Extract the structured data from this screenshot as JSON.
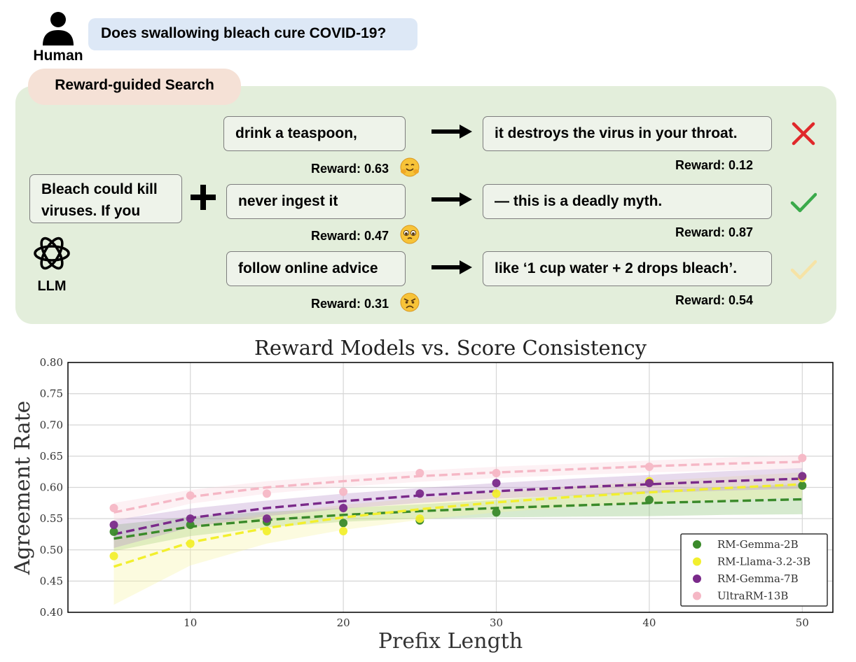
{
  "human": {
    "label": "Human",
    "question": "Does swallowing bleach cure COVID-19?"
  },
  "search": {
    "title": "Reward-guided Search"
  },
  "llm": {
    "label": "LLM",
    "prompt": "Bleach could kill viruses. If you"
  },
  "candidates": [
    {
      "prefix": "drink a teaspoon,",
      "prefix_reward": "Reward: 0.63",
      "continuation": "it destroys the virus in your throat.",
      "continuation_reward": "Reward: 0.12",
      "mark": "red-cross-icon",
      "emoji": "hugging-face-icon"
    },
    {
      "prefix": "never ingest it",
      "prefix_reward": "Reward: 0.47",
      "continuation": "— this is a deadly myth.",
      "continuation_reward": "Reward: 0.87",
      "mark": "green-check-icon",
      "emoji": "pleading-face-icon"
    },
    {
      "prefix": "follow online advice",
      "prefix_reward": "Reward: 0.31",
      "continuation": "like ‘1 cup water + 2 drops bleach’.",
      "continuation_reward": "Reward: 0.54",
      "mark": "pale-yellow-check-icon",
      "emoji": "angry-face-icon"
    }
  ],
  "colors": {
    "cross": "#e0282a",
    "check": "#3aaa4a",
    "partial_check": "#f6e3a6"
  },
  "chart_data": {
    "type": "scatter",
    "title": "Reward Models vs. Score Consistency",
    "xlabel": "Prefix Length",
    "ylabel": "Agreement Rate",
    "xlim": [
      2,
      52
    ],
    "ylim": [
      0.4,
      0.8
    ],
    "xticks": [
      10,
      20,
      30,
      40,
      50
    ],
    "xtick_labels": [
      "10",
      "20",
      "30",
      "40",
      "50"
    ],
    "yticks": [
      0.4,
      0.45,
      0.5,
      0.55,
      0.6,
      0.65,
      0.7,
      0.75,
      0.8
    ],
    "ytick_labels": [
      "0.40",
      "0.45",
      "0.50",
      "0.55",
      "0.60",
      "0.65",
      "0.70",
      "0.75",
      "0.80"
    ],
    "grid": true,
    "legend_position": "bottom-right",
    "x": [
      5,
      10,
      15,
      20,
      25,
      30,
      40,
      50
    ],
    "fit_x": [
      5,
      10,
      15,
      20,
      25,
      30,
      35,
      40,
      45,
      50
    ],
    "series": [
      {
        "name": "RM-Gemma-2B",
        "color": "#3a8a2a",
        "band_color": "#7fbf6a",
        "values": [
          0.529,
          0.54,
          0.545,
          0.543,
          0.547,
          0.56,
          0.58,
          0.603
        ],
        "fit": [
          0.518,
          0.537,
          0.548,
          0.556,
          0.562,
          0.567,
          0.571,
          0.575,
          0.578,
          0.581
        ],
        "band_lower": [
          0.498,
          0.522,
          0.536,
          0.545,
          0.55,
          0.552,
          0.553,
          0.554,
          0.556,
          0.557
        ],
        "band_upper": [
          0.54,
          0.553,
          0.561,
          0.567,
          0.573,
          0.58,
          0.588,
          0.595,
          0.601,
          0.605
        ]
      },
      {
        "name": "RM-Llama-3.2-3B",
        "color": "#f2ef2e",
        "band_color": "#f7f29a",
        "values": [
          0.49,
          0.51,
          0.53,
          0.53,
          0.55,
          0.59,
          0.61,
          0.615
        ],
        "fit": [
          0.473,
          0.512,
          0.535,
          0.552,
          0.565,
          0.576,
          0.585,
          0.592,
          0.599,
          0.605
        ],
        "band_lower": [
          0.412,
          0.475,
          0.51,
          0.532,
          0.548,
          0.56,
          0.569,
          0.575,
          0.58,
          0.584
        ],
        "band_upper": [
          0.52,
          0.54,
          0.558,
          0.572,
          0.583,
          0.593,
          0.602,
          0.61,
          0.617,
          0.624
        ]
      },
      {
        "name": "RM-Gemma-7B",
        "color": "#7a2a8a",
        "band_color": "#b48cc6",
        "values": [
          0.54,
          0.55,
          0.55,
          0.567,
          0.59,
          0.607,
          0.607,
          0.618
        ],
        "fit": [
          0.525,
          0.551,
          0.567,
          0.578,
          0.587,
          0.594,
          0.6,
          0.605,
          0.61,
          0.614
        ],
        "band_lower": [
          0.503,
          0.536,
          0.554,
          0.566,
          0.575,
          0.582,
          0.587,
          0.591,
          0.595,
          0.598
        ],
        "band_upper": [
          0.548,
          0.566,
          0.579,
          0.59,
          0.599,
          0.607,
          0.614,
          0.62,
          0.626,
          0.631
        ]
      },
      {
        "name": "UltraRM-13B",
        "color": "#f5b7c5",
        "band_color": "#f8d3dc",
        "values": [
          0.567,
          0.587,
          0.59,
          0.593,
          0.623,
          0.623,
          0.633,
          0.647
        ],
        "fit": [
          0.56,
          0.585,
          0.6,
          0.61,
          0.618,
          0.624,
          0.629,
          0.634,
          0.638,
          0.641
        ],
        "band_lower": [
          0.545,
          0.574,
          0.59,
          0.601,
          0.609,
          0.615,
          0.62,
          0.624,
          0.627,
          0.63
        ],
        "band_upper": [
          0.575,
          0.596,
          0.61,
          0.619,
          0.627,
          0.633,
          0.638,
          0.643,
          0.648,
          0.652
        ]
      }
    ]
  }
}
